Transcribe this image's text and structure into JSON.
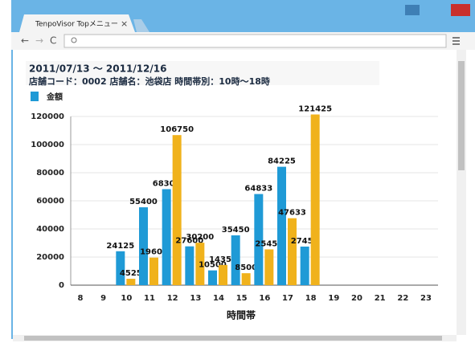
{
  "browser": {
    "tab_title": "TenpoVisor Topメニュー",
    "tab_close": "×"
  },
  "chart_data": {
    "type": "bar",
    "title": "2011/07/13 ～ 2011/12/16",
    "subtitle": "店舗コード：0002  店舗名：池袋店  時間帯別：10時～18時",
    "x_label": "時間帯",
    "categories": [
      "8",
      "9",
      "10",
      "11",
      "12",
      "13",
      "14",
      "15",
      "16",
      "17",
      "18",
      "19",
      "20",
      "21",
      "22",
      "23"
    ],
    "series": [
      {
        "name": "金額",
        "color": "#1f9ad6",
        "values": [
          null,
          null,
          24125,
          55400,
          68300,
          27600,
          10500,
          35450,
          64833,
          84225,
          27450,
          null,
          null,
          null,
          null,
          null
        ]
      },
      {
        "color": "#f0b21c",
        "values": [
          null,
          null,
          4525,
          19600,
          106750,
          30200,
          14350,
          8500,
          25450,
          47633,
          121425,
          null,
          null,
          null,
          null,
          null
        ]
      }
    ],
    "ylim": [
      0,
      120000
    ],
    "yticks": [
      0,
      20000,
      40000,
      60000,
      80000,
      100000,
      120000
    ],
    "grid": true
  }
}
